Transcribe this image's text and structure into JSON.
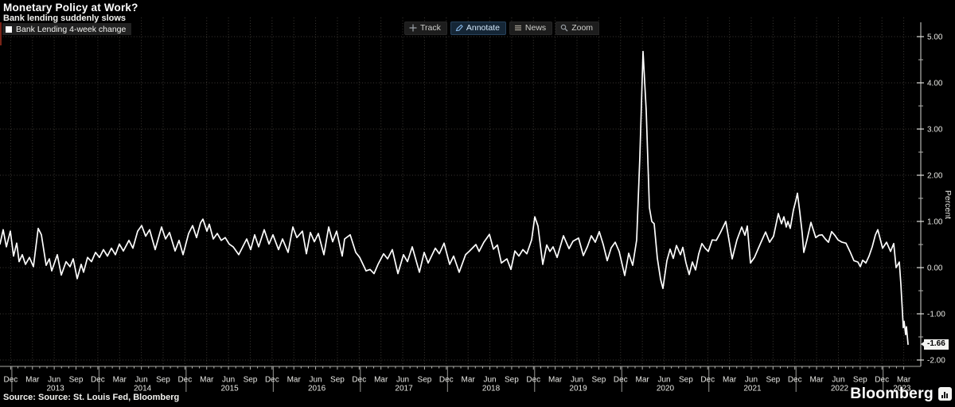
{
  "header": {
    "title": "Monetary Policy at Work?",
    "subtitle": "Bank lending suddenly slows"
  },
  "legend": {
    "label": "Bank Lending 4-week change",
    "marker_color": "#ffffff"
  },
  "toolbar": {
    "items": [
      {
        "label": "Track",
        "icon": "crosshair-icon",
        "active": false
      },
      {
        "label": "Annotate",
        "icon": "pencil-icon",
        "active": true
      },
      {
        "label": "News",
        "icon": "list-icon",
        "active": false
      },
      {
        "label": "Zoom",
        "icon": "magnifier-icon",
        "active": false
      }
    ]
  },
  "footer": {
    "source": "Source: Source: St. Louis Fed, Bloomberg",
    "brand": "Bloomberg",
    "brand_icon": "bar-chart-icon"
  },
  "colors": {
    "background": "#000000",
    "line": "#ffffff",
    "grid": "#3b3833",
    "axis": "#c9c9c5",
    "tick_label": "#e8e8e4",
    "badge_bg": "#f2f2f0",
    "annotate_active": "#152636",
    "edge_strip": "#7a2418"
  },
  "chart_data": {
    "type": "line",
    "title": "Monetary Policy at Work?",
    "subtitle": "Bank lending suddenly slows",
    "series_name": "Bank Lending 4-week change",
    "xlabel": "",
    "ylabel": "Percent",
    "ylim": [
      -2.25,
      5.25
    ],
    "grid": true,
    "legend_position": "top-left",
    "y_tick_values": [
      5,
      4,
      3,
      2,
      1,
      0,
      -1,
      -2
    ],
    "y_tick_labels": [
      "5.00",
      "4.00",
      "3.00",
      "2.00",
      "1.00",
      "0.00",
      "-1.00",
      "-2.00"
    ],
    "x_quarter_labels": [
      "Dec",
      "Mar",
      "Jun",
      "Sep",
      "Dec",
      "Mar",
      "Jun",
      "Sep",
      "Dec",
      "Mar",
      "Jun",
      "Sep",
      "Dec",
      "Mar",
      "Jun",
      "Sep",
      "Dec",
      "Mar",
      "Jun",
      "Sep",
      "Dec",
      "Mar",
      "Jun",
      "Sep",
      "Dec",
      "Mar",
      "Jun",
      "Sep",
      "Dec",
      "Mar",
      "Jun",
      "Sep",
      "Dec",
      "Mar",
      "Jun",
      "Sep",
      "Dec",
      "Mar",
      "Jun",
      "Sep",
      "Dec",
      "Mar"
    ],
    "x_year_labels": [
      "2013",
      "2014",
      "2015",
      "2016",
      "2017",
      "2018",
      "2019",
      "2020",
      "2021",
      "2022",
      "2023"
    ],
    "x_range_note": "weekly series, Dec 2012 - Apr 2023",
    "last_value": -1.66,
    "last_value_label": "-1.66",
    "peak_value": 4.68,
    "peak_time": "Mar 2020",
    "points_format": "[x_px, percent] traced polyline vertices",
    "points": [
      [
        0,
        0.51
      ],
      [
        4,
        0.82
      ],
      [
        8,
        0.45
      ],
      [
        13,
        0.79
      ],
      [
        17,
        0.25
      ],
      [
        21,
        0.53
      ],
      [
        24,
        0.13
      ],
      [
        28,
        0.28
      ],
      [
        32,
        0.07
      ],
      [
        37,
        0.22
      ],
      [
        42,
        0.02
      ],
      [
        48,
        0.85
      ],
      [
        52,
        0.71
      ],
      [
        58,
        0.05
      ],
      [
        62,
        0.19
      ],
      [
        65,
        -0.07
      ],
      [
        72,
        0.28
      ],
      [
        77,
        -0.16
      ],
      [
        83,
        0.13
      ],
      [
        88,
        0.02
      ],
      [
        92,
        0.19
      ],
      [
        97,
        -0.24
      ],
      [
        102,
        0.07
      ],
      [
        105,
        -0.1
      ],
      [
        110,
        0.22
      ],
      [
        115,
        0.13
      ],
      [
        120,
        0.33
      ],
      [
        125,
        0.22
      ],
      [
        130,
        0.39
      ],
      [
        135,
        0.25
      ],
      [
        140,
        0.42
      ],
      [
        145,
        0.28
      ],
      [
        150,
        0.51
      ],
      [
        155,
        0.36
      ],
      [
        162,
        0.59
      ],
      [
        167,
        0.42
      ],
      [
        173,
        0.79
      ],
      [
        178,
        0.91
      ],
      [
        183,
        0.68
      ],
      [
        188,
        0.82
      ],
      [
        195,
        0.39
      ],
      [
        203,
        0.88
      ],
      [
        208,
        0.62
      ],
      [
        213,
        0.76
      ],
      [
        220,
        0.36
      ],
      [
        225,
        0.59
      ],
      [
        230,
        0.28
      ],
      [
        237,
        0.74
      ],
      [
        242,
        0.91
      ],
      [
        247,
        0.65
      ],
      [
        252,
        0.97
      ],
      [
        255,
        1.05
      ],
      [
        260,
        0.79
      ],
      [
        263,
        0.94
      ],
      [
        268,
        0.62
      ],
      [
        273,
        0.74
      ],
      [
        278,
        0.59
      ],
      [
        283,
        0.65
      ],
      [
        288,
        0.51
      ],
      [
        293,
        0.45
      ],
      [
        300,
        0.28
      ],
      [
        305,
        0.45
      ],
      [
        310,
        0.62
      ],
      [
        315,
        0.39
      ],
      [
        320,
        0.71
      ],
      [
        325,
        0.45
      ],
      [
        332,
        0.82
      ],
      [
        338,
        0.51
      ],
      [
        343,
        0.71
      ],
      [
        350,
        0.39
      ],
      [
        355,
        0.62
      ],
      [
        362,
        0.33
      ],
      [
        368,
        0.88
      ],
      [
        373,
        0.65
      ],
      [
        380,
        0.79
      ],
      [
        385,
        0.3
      ],
      [
        390,
        0.76
      ],
      [
        395,
        0.56
      ],
      [
        400,
        0.74
      ],
      [
        407,
        0.28
      ],
      [
        413,
        0.88
      ],
      [
        418,
        0.56
      ],
      [
        423,
        0.79
      ],
      [
        430,
        0.25
      ],
      [
        433,
        0.62
      ],
      [
        440,
        0.71
      ],
      [
        447,
        0.33
      ],
      [
        452,
        0.22
      ],
      [
        460,
        -0.07
      ],
      [
        465,
        -0.04
      ],
      [
        470,
        -0.13
      ],
      [
        475,
        0.07
      ],
      [
        482,
        0.3
      ],
      [
        487,
        0.19
      ],
      [
        493,
        0.39
      ],
      [
        500,
        -0.13
      ],
      [
        507,
        0.28
      ],
      [
        512,
        0.13
      ],
      [
        518,
        0.45
      ],
      [
        527,
        -0.1
      ],
      [
        533,
        0.33
      ],
      [
        538,
        0.1
      ],
      [
        547,
        0.42
      ],
      [
        552,
        0.3
      ],
      [
        558,
        0.53
      ],
      [
        565,
        0.07
      ],
      [
        570,
        0.25
      ],
      [
        577,
        -0.1
      ],
      [
        585,
        0.28
      ],
      [
        590,
        0.36
      ],
      [
        598,
        0.5
      ],
      [
        602,
        0.35
      ],
      [
        608,
        0.55
      ],
      [
        615,
        0.72
      ],
      [
        620,
        0.4
      ],
      [
        625,
        0.49
      ],
      [
        630,
        0.1
      ],
      [
        637,
        0.19
      ],
      [
        642,
        -0.04
      ],
      [
        647,
        0.36
      ],
      [
        652,
        0.25
      ],
      [
        657,
        0.39
      ],
      [
        662,
        0.3
      ],
      [
        668,
        0.6
      ],
      [
        672,
        1.1
      ],
      [
        676,
        0.9
      ],
      [
        682,
        0.07
      ],
      [
        687,
        0.49
      ],
      [
        691,
        0.35
      ],
      [
        695,
        0.45
      ],
      [
        700,
        0.22
      ],
      [
        708,
        0.69
      ],
      [
        715,
        0.41
      ],
      [
        720,
        0.57
      ],
      [
        727,
        0.64
      ],
      [
        733,
        0.26
      ],
      [
        738,
        0.45
      ],
      [
        743,
        0.69
      ],
      [
        748,
        0.55
      ],
      [
        753,
        0.78
      ],
      [
        758,
        0.5
      ],
      [
        763,
        0.15
      ],
      [
        768,
        0.43
      ],
      [
        773,
        0.55
      ],
      [
        778,
        0.35
      ],
      [
        785,
        -0.17
      ],
      [
        790,
        0.31
      ],
      [
        795,
        0.05
      ],
      [
        800,
        0.6
      ],
      [
        804,
        2.4
      ],
      [
        808,
        4.68
      ],
      [
        812,
        3.4
      ],
      [
        816,
        1.3
      ],
      [
        819,
        1.0
      ],
      [
        822,
        0.95
      ],
      [
        826,
        0.2
      ],
      [
        830,
        -0.25
      ],
      [
        833,
        -0.45
      ],
      [
        838,
        0.15
      ],
      [
        842,
        0.4
      ],
      [
        846,
        0.2
      ],
      [
        850,
        0.48
      ],
      [
        855,
        0.28
      ],
      [
        858,
        0.44
      ],
      [
        862,
        0.1
      ],
      [
        866,
        -0.15
      ],
      [
        870,
        0.12
      ],
      [
        874,
        -0.05
      ],
      [
        878,
        0.3
      ],
      [
        882,
        0.52
      ],
      [
        886,
        0.42
      ],
      [
        890,
        0.35
      ],
      [
        895,
        0.6
      ],
      [
        900,
        0.59
      ],
      [
        905,
        0.75
      ],
      [
        912,
        1.0
      ],
      [
        920,
        0.19
      ],
      [
        926,
        0.6
      ],
      [
        932,
        0.88
      ],
      [
        936,
        0.7
      ],
      [
        939,
        0.9
      ],
      [
        943,
        0.1
      ],
      [
        948,
        0.22
      ],
      [
        955,
        0.5
      ],
      [
        962,
        0.77
      ],
      [
        967,
        0.55
      ],
      [
        972,
        0.68
      ],
      [
        978,
        1.17
      ],
      [
        982,
        0.95
      ],
      [
        985,
        1.1
      ],
      [
        988,
        0.88
      ],
      [
        990,
        1.0
      ],
      [
        993,
        0.85
      ],
      [
        997,
        1.25
      ],
      [
        1000,
        1.45
      ],
      [
        1002,
        1.61
      ],
      [
        1005,
        1.2
      ],
      [
        1008,
        0.75
      ],
      [
        1010,
        0.33
      ],
      [
        1014,
        0.6
      ],
      [
        1019,
        0.98
      ],
      [
        1025,
        0.65
      ],
      [
        1029,
        0.7
      ],
      [
        1033,
        0.71
      ],
      [
        1037,
        0.62
      ],
      [
        1041,
        0.55
      ],
      [
        1045,
        0.78
      ],
      [
        1049,
        0.7
      ],
      [
        1053,
        0.6
      ],
      [
        1058,
        0.55
      ],
      [
        1063,
        0.53
      ],
      [
        1068,
        0.35
      ],
      [
        1073,
        0.15
      ],
      [
        1078,
        0.12
      ],
      [
        1081,
        0.02
      ],
      [
        1084,
        0.16
      ],
      [
        1088,
        0.1
      ],
      [
        1092,
        0.25
      ],
      [
        1096,
        0.45
      ],
      [
        1100,
        0.71
      ],
      [
        1103,
        0.82
      ],
      [
        1109,
        0.42
      ],
      [
        1114,
        0.55
      ],
      [
        1119,
        0.35
      ],
      [
        1123,
        0.52
      ],
      [
        1126,
        0.0
      ],
      [
        1130,
        0.12
      ],
      [
        1132,
        -0.36
      ],
      [
        1134,
        -0.98
      ],
      [
        1135,
        -1.3
      ],
      [
        1136,
        -1.16
      ],
      [
        1138,
        -1.45
      ],
      [
        1139,
        -1.28
      ],
      [
        1141,
        -1.66
      ]
    ]
  }
}
